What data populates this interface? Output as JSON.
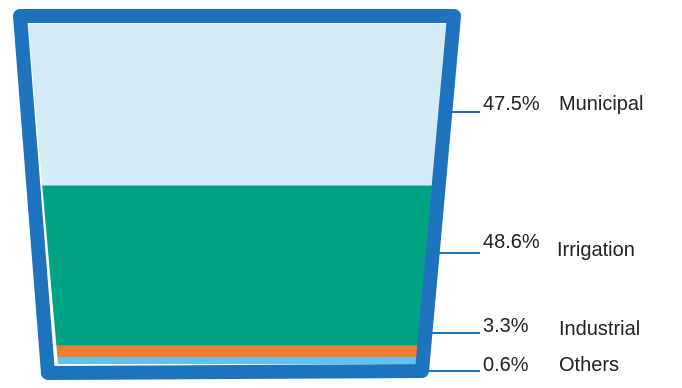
{
  "chart_data": {
    "type": "bar",
    "style": "stacked-cup",
    "categories": [
      "Municipal",
      "Irrigation",
      "Industrial",
      "Others"
    ],
    "values": [
      47.5,
      48.6,
      3.3,
      0.6
    ],
    "value_labels": [
      "47.5%",
      "48.6%",
      "3.3%",
      "0.6%"
    ],
    "unit": "%",
    "colors": [
      "#d4ecf6",
      "#00a383",
      "#ef7d30",
      "#62c2ee"
    ],
    "outline_color": "#1e73be",
    "leader_color": "#1e73be",
    "title": "",
    "xlabel": "",
    "ylabel": "",
    "ylim": [
      0,
      100
    ],
    "grid": false,
    "legend": "right, leader lines"
  }
}
